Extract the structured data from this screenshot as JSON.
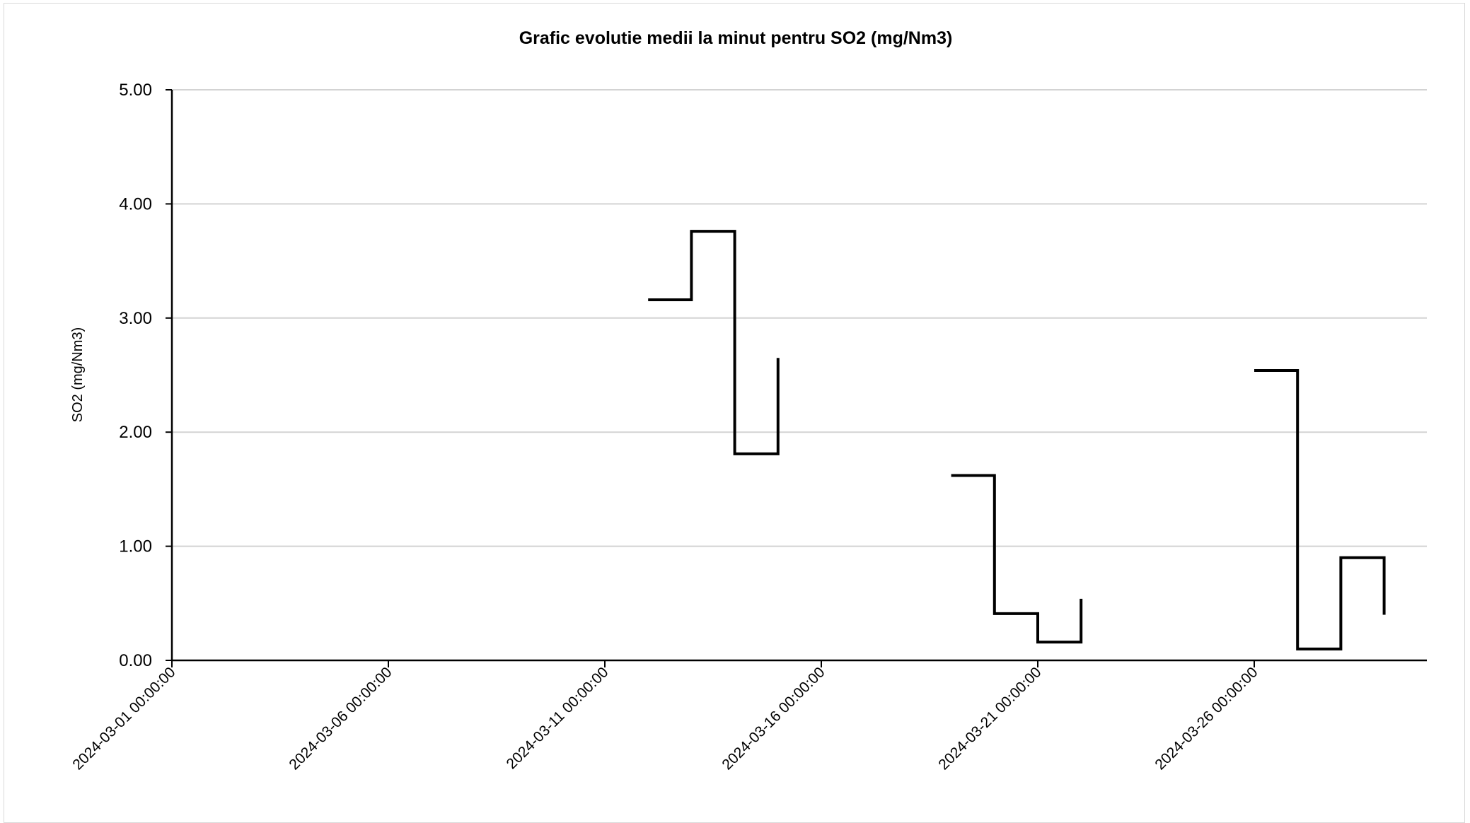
{
  "chart_data": {
    "type": "line",
    "step": true,
    "title": "Grafic evolutie medii la minut pentru SO2 (mg/Nm3)",
    "xlabel": "",
    "ylabel": "SO2 (mg/Nm3)",
    "x_ticks": [
      "2024-03-01 00:00:00",
      "2024-03-06 00:00:00",
      "2024-03-11 00:00:00",
      "2024-03-16 00:00:00",
      "2024-03-21 00:00:00",
      "2024-03-26 00:00:00"
    ],
    "y_ticks": [
      "0.00",
      "1.00",
      "2.00",
      "3.00",
      "4.00",
      "5.00"
    ],
    "ylim": [
      0,
      5
    ],
    "xlim": [
      "2024-03-01 00:00:00",
      "2024-03-30 00:00:00"
    ],
    "grid": true,
    "line_color": "#000000",
    "series": [
      {
        "segments": [
          {
            "x": [
              "2024-03-12 00:00:00",
              "2024-03-13 00:00:00",
              "2024-03-14 00:00:00",
              "2024-03-15 00:00:00"
            ],
            "y": [
              3.16,
              3.76,
              1.81,
              2.65
            ]
          },
          {
            "x": [
              "2024-03-19 00:00:00",
              "2024-03-20 00:00:00",
              "2024-03-21 00:00:00",
              "2024-03-22 00:00:00"
            ],
            "y": [
              1.62,
              0.41,
              0.16,
              0.54
            ]
          },
          {
            "x": [
              "2024-03-26 00:00:00",
              "2024-03-27 00:00:00",
              "2024-03-28 00:00:00",
              "2024-03-29 00:00:00"
            ],
            "y": [
              2.54,
              0.1,
              0.9,
              0.4
            ]
          }
        ]
      }
    ]
  }
}
